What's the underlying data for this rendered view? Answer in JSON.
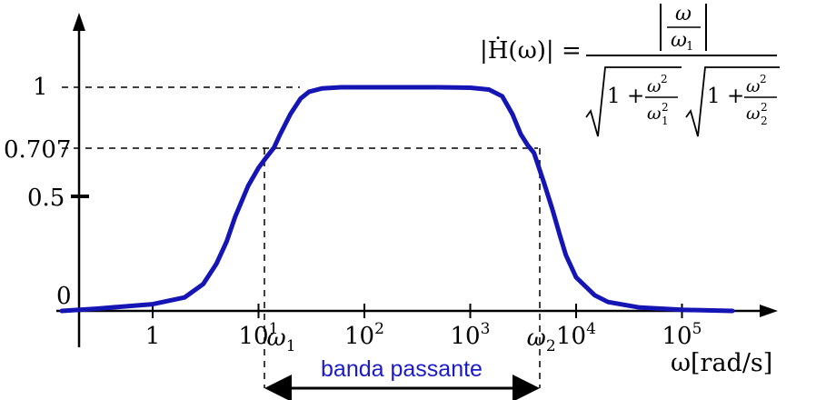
{
  "chart_data": {
    "type": "line",
    "xscale": "log",
    "x_tick_labels": [
      {
        "base": "1",
        "exp": ""
      },
      {
        "base": "10",
        "exp": "1"
      },
      {
        "base": "10",
        "exp": "2"
      },
      {
        "base": "10",
        "exp": "3"
      },
      {
        "base": "10",
        "exp": "4"
      },
      {
        "base": "10",
        "exp": "5"
      }
    ],
    "y_tick_labels": [
      "1",
      "0.707",
      "0.5",
      "0"
    ],
    "xlabel": "ω[rad/s]",
    "markers": [
      {
        "symbol": "ω",
        "sub": "1",
        "x": 14
      },
      {
        "symbol": "ω",
        "sub": "2",
        "x": 4000
      }
    ],
    "band_label": "banda passante",
    "formula": {
      "lhs": "|Ḣ(ω)| =",
      "num_top": "ω",
      "num_bottom": "ω",
      "num_bottom_sub": "1",
      "term1": "1 +",
      "frac1_top": "ω",
      "frac1_top_sup": "2",
      "frac1_bottom": "ω",
      "frac1_bottom_sub": "1",
      "frac1_bottom_sup": "2",
      "term2": "1 +",
      "frac2_top": "ω",
      "frac2_top_sup": "2",
      "frac2_bottom": "ω",
      "frac2_bottom_sub": "2",
      "frac2_bottom_sup": "2"
    },
    "series": [
      {
        "x": [
          0.1,
          0.3,
          1,
          2,
          3,
          4,
          5,
          6,
          8,
          10,
          12,
          14,
          16,
          20,
          25,
          30,
          40,
          60,
          100,
          200,
          500,
          1000,
          1500,
          2000,
          2500,
          3000,
          3500,
          4000,
          5000,
          6000,
          7000,
          8000,
          10000,
          15000,
          20000,
          40000,
          100000,
          300000
        ],
        "y": [
          0.0,
          0.01,
          0.03,
          0.06,
          0.12,
          0.21,
          0.31,
          0.42,
          0.56,
          0.64,
          0.69,
          0.73,
          0.79,
          0.88,
          0.95,
          0.98,
          0.995,
          1.0,
          1.0,
          1.0,
          1.0,
          0.998,
          0.99,
          0.96,
          0.88,
          0.79,
          0.74,
          0.707,
          0.57,
          0.45,
          0.34,
          0.25,
          0.15,
          0.07,
          0.04,
          0.015,
          0.005,
          0.0
        ],
        "color": "#1515b5"
      }
    ],
    "colors": {
      "curve": "#1515b5",
      "band_label": "#1a1ac8",
      "axis": "#000000"
    }
  }
}
